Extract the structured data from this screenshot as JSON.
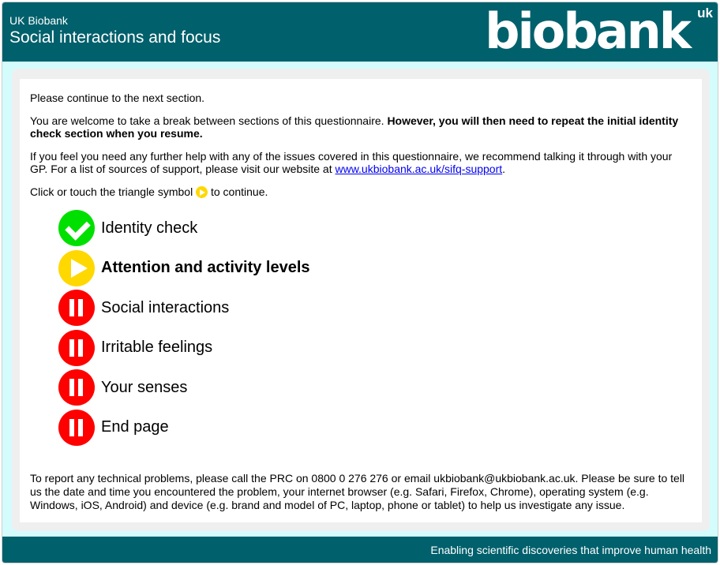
{
  "header": {
    "org": "UK Biobank",
    "title": "Social interactions and focus",
    "logo_text": "biobank",
    "logo_suffix": "uk"
  },
  "content": {
    "continue_text": "Please continue to the next section.",
    "break_text": "You are welcome to take a break between sections of this questionnaire. ",
    "break_bold": "However, you will then need to repeat the initial identity check section when you resume.",
    "help_text": "If you feel you need any further help with any of the issues covered in this questionnaire, we recommend talking it through with your GP. For a list of sources of support, please visit our website at ",
    "help_link": "www.ukbiobank.ac.uk/sifq-support",
    "help_end": ".",
    "triangle_before": "Click or touch the triangle symbol ",
    "triangle_after": " to continue."
  },
  "steps": [
    {
      "label": "Identity check",
      "status": "complete",
      "icon": "check-icon"
    },
    {
      "label": "Attention and activity levels",
      "status": "current",
      "icon": "play-icon"
    },
    {
      "label": "Social interactions",
      "status": "pending",
      "icon": "pause-icon"
    },
    {
      "label": "Irritable feelings",
      "status": "pending",
      "icon": "pause-icon"
    },
    {
      "label": "Your senses",
      "status": "pending",
      "icon": "pause-icon"
    },
    {
      "label": "End page",
      "status": "pending",
      "icon": "pause-icon"
    }
  ],
  "report_text": "To report any technical problems, please call the PRC on 0800 0 276 276 or email ukbiobank@ukbiobank.ac.uk. Please be sure to tell us the date and time you encountered the problem, your internet browser (e.g. Safari, Firefox, Chrome), operating system (e.g. Windows, iOS, Android) and device (e.g. brand and model of PC, laptop, phone or tablet) to help us investigate any issue.",
  "footer": {
    "tagline": "Enabling scientific discoveries that improve human health"
  },
  "colors": {
    "brand": "#00606c",
    "complete": "#00e000",
    "current": "#ffd800",
    "pending": "#ff0000"
  }
}
